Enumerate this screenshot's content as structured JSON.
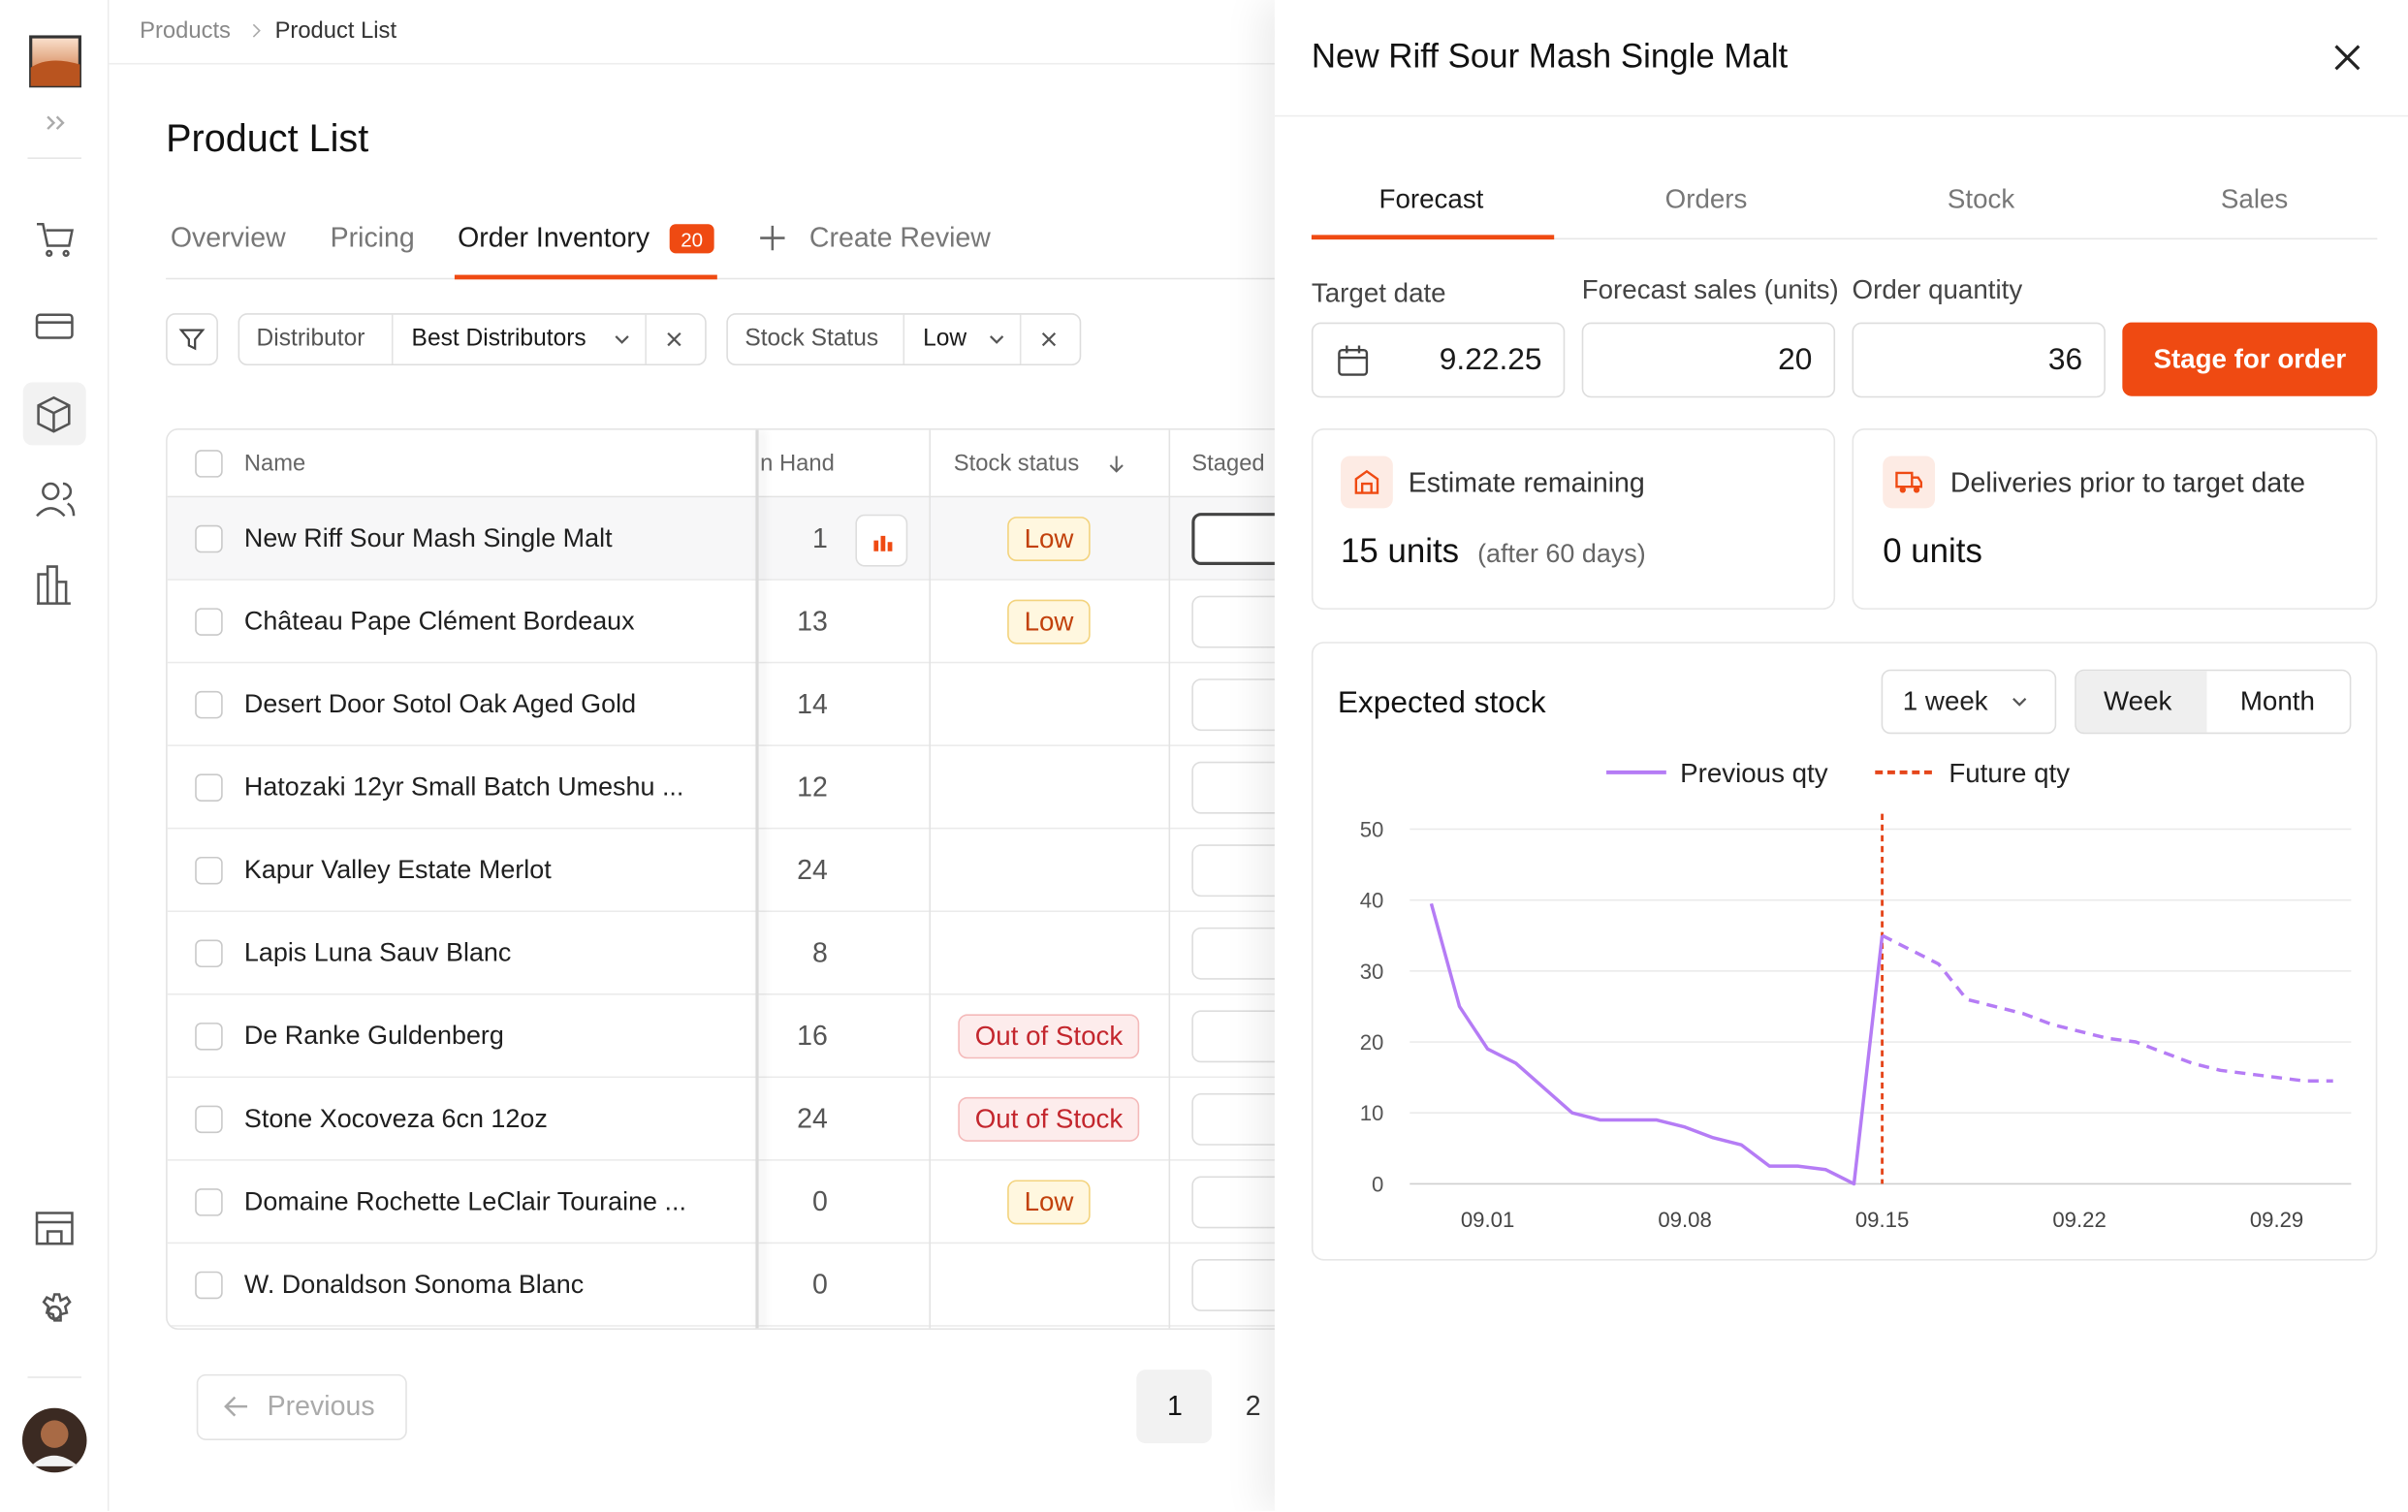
{
  "breadcrumb": [
    "Products",
    "Product List"
  ],
  "page_title": "Product List",
  "tabs": [
    "Overview",
    "Pricing",
    "Order Inventory",
    "Create Review"
  ],
  "tab_badge": 20,
  "filters": [
    {
      "label": "Distributor",
      "value": "Best Distributors"
    },
    {
      "label": "Stock Status",
      "value": "Low"
    }
  ],
  "table": {
    "columns": [
      "Name",
      "n Hand",
      "Stock status",
      "Staged"
    ],
    "rows": [
      [
        "New Riff Sour Mash Single Malt",
        1,
        "Low"
      ],
      [
        "Château Pape Clément Bordeaux",
        13,
        "Low"
      ],
      [
        "Desert Door Sotol Oak Aged Gold",
        14,
        null
      ],
      [
        "Hatozaki 12yr Small Batch Umeshu ...",
        12,
        null
      ],
      [
        "Kapur Valley Estate Merlot",
        24,
        null
      ],
      [
        "Lapis Luna Sauv Blanc",
        8,
        null
      ],
      [
        "De Ranke Guldenberg",
        16,
        "Out of Stock"
      ],
      [
        "Stone Xocoveza 6cn 12oz",
        24,
        "Out of Stock"
      ],
      [
        "Domaine Rochette LeClair Touraine ...",
        0,
        "Low"
      ],
      [
        "W. Donaldson Sonoma Blanc",
        0,
        null
      ]
    ]
  },
  "pagination": {
    "previous": "Previous",
    "pages": [
      1,
      2
    ]
  },
  "panel": {
    "title": "New Riff Sour Mash Single Malt",
    "tabs": [
      "Forecast",
      "Orders",
      "Stock",
      "Sales"
    ],
    "fields": [
      {
        "label": "Target date",
        "value": "9.22.25"
      },
      {
        "label": "Forecast sales (units)",
        "value": 20
      },
      {
        "label": "Order quantity",
        "value": 36
      }
    ],
    "button": "Stage for order",
    "cards": [
      {
        "label": "Estimate remaining",
        "value": "15 units",
        "note": "(after 60 days)"
      },
      {
        "label": "Deliveries prior to target date",
        "value": "0 units"
      }
    ],
    "range_select": "1 week",
    "toggle": [
      "Week",
      "Month"
    ]
  },
  "chart_data": {
    "type": "line",
    "title": "Expected stock",
    "categories": [
      null,
      null,
      "09.01",
      null,
      null,
      null,
      null,
      null,
      null,
      "09.08",
      null,
      null,
      null,
      null,
      null,
      null,
      "09.15",
      null,
      null,
      null,
      null,
      null,
      null,
      "09.22",
      null,
      null,
      null,
      null,
      null,
      null,
      "09.29",
      null,
      null
    ],
    "series": [
      {
        "name": "Previous qty",
        "color": "#b57cf5",
        "dashed": false,
        "values": [
          39.5,
          25,
          19,
          17,
          13.5,
          10,
          9,
          9,
          9,
          8,
          6.5,
          5.5,
          2.5,
          2.5,
          2,
          0,
          35,
          null,
          null,
          null,
          null,
          null,
          null,
          null,
          null,
          null,
          null,
          null,
          null,
          null,
          null,
          null,
          null
        ]
      },
      {
        "name": "Future qty",
        "color": "#b57cf5",
        "legend_color": "#e5461b",
        "dashed": true,
        "values": [
          null,
          null,
          null,
          null,
          null,
          null,
          null,
          null,
          null,
          null,
          null,
          null,
          null,
          null,
          null,
          null,
          35,
          33,
          31,
          26,
          25,
          24,
          22.5,
          21.5,
          20.5,
          20,
          18.5,
          17,
          16,
          15.5,
          15,
          14.5,
          14.5
        ]
      }
    ],
    "marker_line": {
      "at": "09.15",
      "color": "#e5461b"
    },
    "ylim": [
      0,
      50
    ],
    "yticks": [
      0,
      10,
      20,
      30,
      40,
      50
    ],
    "grid": true
  }
}
